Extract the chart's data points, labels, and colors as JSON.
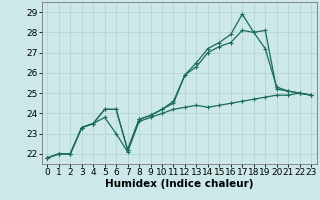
{
  "title": "",
  "xlabel": "Humidex (Indice chaleur)",
  "ylabel": "",
  "background_color": "#cce8e8",
  "grid_color": "#b8d8d8",
  "line_color": "#1a6b5a",
  "x": [
    0,
    1,
    2,
    3,
    4,
    5,
    6,
    7,
    8,
    9,
    10,
    11,
    12,
    13,
    14,
    15,
    16,
    17,
    18,
    19,
    20,
    21,
    22,
    23
  ],
  "line1": [
    21.8,
    22.0,
    22.0,
    23.3,
    23.5,
    23.8,
    23.0,
    22.1,
    23.6,
    23.8,
    24.0,
    24.2,
    24.3,
    24.4,
    24.3,
    24.4,
    24.5,
    24.6,
    24.7,
    24.8,
    24.9,
    24.9,
    25.0,
    24.9
  ],
  "line2": [
    21.8,
    22.0,
    22.0,
    23.3,
    23.5,
    24.2,
    24.2,
    22.2,
    23.7,
    23.9,
    24.2,
    24.5,
    25.9,
    26.3,
    27.0,
    27.3,
    27.5,
    28.1,
    28.0,
    28.1,
    25.2,
    25.1,
    25.0,
    24.9
  ],
  "line3": [
    21.8,
    22.0,
    22.0,
    23.3,
    23.5,
    24.2,
    24.2,
    22.2,
    23.7,
    23.9,
    24.2,
    24.6,
    25.9,
    26.5,
    27.2,
    27.5,
    27.9,
    28.9,
    28.0,
    27.2,
    25.3,
    25.1,
    25.0,
    24.9
  ],
  "ylim": [
    21.5,
    29.5
  ],
  "yticks": [
    22,
    23,
    24,
    25,
    26,
    27,
    28,
    29
  ],
  "xticks": [
    0,
    1,
    2,
    3,
    4,
    5,
    6,
    7,
    8,
    9,
    10,
    11,
    12,
    13,
    14,
    15,
    16,
    17,
    18,
    19,
    20,
    21,
    22,
    23
  ],
  "xlim": [
    -0.5,
    23.5
  ],
  "tick_fontsize": 6.5,
  "label_fontsize": 7.5
}
